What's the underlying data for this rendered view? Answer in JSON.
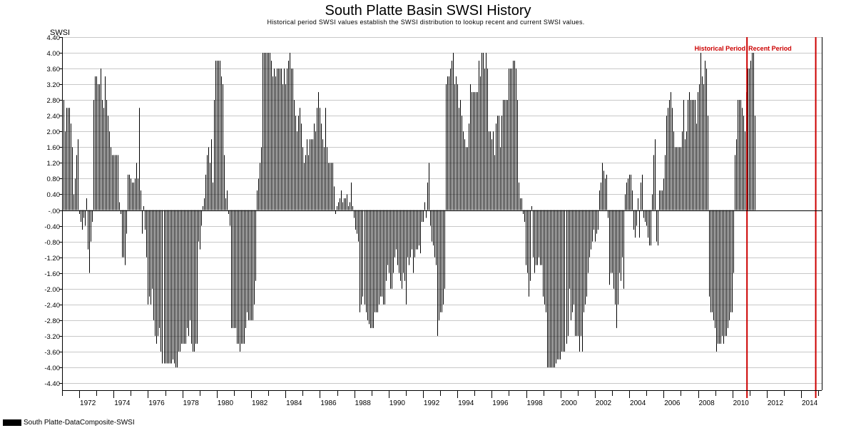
{
  "chart_data": {
    "type": "bar",
    "title": "South Platte Basin SWSI History",
    "subtitle": "Historical period SWSI values establish the SWSI distribution to lookup recent and current SWSI values.",
    "ylabel": "SWSI",
    "xlabel": "",
    "ylim": [
      -4.4,
      4.4
    ],
    "y_ticks": [
      "4.40",
      "4.00",
      "3.60",
      "3.20",
      "2.80",
      "2.40",
      "2.00",
      "1.60",
      "1.20",
      "0.80",
      "0.40",
      "-.00",
      "-0.40",
      "-0.80",
      "-1.20",
      "-1.60",
      "-2.00",
      "-2.40",
      "-2.80",
      "-3.20",
      "-3.60",
      "-4.00",
      "-4.40"
    ],
    "xlim": [
      1971.0,
      2015.2
    ],
    "x_ticks": [
      "1972",
      "1974",
      "1976",
      "1978",
      "1980",
      "1982",
      "1984",
      "1986",
      "1988",
      "1990",
      "1992",
      "1994",
      "1996",
      "1998",
      "2000",
      "2002",
      "2004",
      "2006",
      "2008",
      "2010",
      "2012",
      "2014"
    ],
    "grid": true,
    "series": [
      {
        "name": "South Platte-DataComposite-SWSI",
        "color": "#000000",
        "x_start": 1971.0,
        "x_step": 0.0833,
        "values": [
          2.8,
          2.8,
          2.0,
          2.6,
          2.6,
          2.6,
          2.2,
          1.6,
          0.4,
          0.8,
          1.4,
          1.8,
          -0.1,
          -0.3,
          -0.5,
          -0.2,
          -0.4,
          0.3,
          -1.0,
          -1.6,
          -0.8,
          -0.3,
          2.8,
          3.4,
          3.4,
          3.2,
          3.2,
          3.6,
          2.8,
          2.6,
          3.4,
          2.8,
          2.4,
          2.0,
          1.6,
          1.4,
          1.4,
          1.4,
          1.4,
          1.4,
          0.2,
          -0.1,
          -1.2,
          -1.2,
          -1.4,
          -0.6,
          0.9,
          0.9,
          0.8,
          0.7,
          0.7,
          0.8,
          1.2,
          0.8,
          2.6,
          0.5,
          -0.6,
          0.1,
          -0.5,
          -1.2,
          -2.4,
          -2.2,
          -2.4,
          -2.0,
          -2.8,
          -3.2,
          -3.4,
          -3.2,
          -3.0,
          -3.6,
          -3.9,
          -3.9,
          -3.9,
          -3.9,
          -3.9,
          -3.9,
          -3.9,
          -3.8,
          -3.9,
          -4.0,
          -4.0,
          -3.6,
          -3.6,
          -3.4,
          -3.4,
          -3.4,
          -3.4,
          -3.0,
          -3.2,
          -2.8,
          -3.4,
          -3.6,
          -3.6,
          -3.4,
          -3.4,
          -0.8,
          -1.0,
          -0.4,
          0.1,
          0.3,
          0.9,
          1.4,
          1.6,
          1.2,
          1.8,
          0.7,
          2.8,
          3.8,
          3.8,
          3.8,
          3.8,
          3.4,
          3.2,
          1.4,
          0.3,
          0.5,
          -0.1,
          -0.4,
          -3.0,
          -3.0,
          -3.0,
          -3.0,
          -3.4,
          -3.4,
          -3.6,
          -3.4,
          -3.4,
          -3.4,
          -3.0,
          -2.6,
          -2.8,
          -2.8,
          -2.8,
          -2.8,
          -2.4,
          -1.8,
          0.5,
          0.8,
          1.2,
          1.6,
          4.0,
          4.0,
          4.0,
          4.0,
          4.0,
          4.0,
          3.8,
          3.4,
          3.6,
          3.4,
          3.6,
          3.6,
          3.6,
          3.6,
          3.2,
          3.6,
          3.2,
          3.6,
          3.8,
          4.0,
          3.6,
          3.6,
          2.8,
          2.4,
          2.0,
          2.4,
          2.6,
          2.2,
          1.6,
          1.2,
          1.4,
          1.8,
          1.4,
          1.8,
          1.8,
          1.8,
          2.2,
          2.0,
          2.6,
          3.0,
          2.6,
          2.2,
          1.8,
          1.6,
          2.6,
          1.6,
          1.2,
          1.2,
          1.2,
          1.2,
          0.6,
          -0.1,
          0.1,
          0.2,
          0.3,
          0.5,
          0.2,
          0.3,
          0.3,
          0.4,
          0.1,
          0.2,
          0.7,
          0.1,
          -0.2,
          -0.5,
          -0.6,
          -0.8,
          -2.6,
          -2.4,
          -2.2,
          -2.4,
          -2.6,
          -2.8,
          -2.9,
          -3.0,
          -3.0,
          -3.0,
          -2.6,
          -2.6,
          -2.6,
          -2.4,
          -2.2,
          -2.2,
          -2.4,
          -2.4,
          -1.8,
          -1.4,
          -1.6,
          -2.0,
          -2.0,
          -1.6,
          -1.2,
          -1.0,
          -1.4,
          -1.6,
          -1.8,
          -2.0,
          -1.6,
          -1.8,
          -2.4,
          -1.2,
          -1.4,
          -1.2,
          -1.0,
          -1.6,
          -1.2,
          -1.0,
          -1.0,
          -0.9,
          -1.1,
          -0.3,
          -0.3,
          0.2,
          -0.2,
          0.7,
          1.2,
          -0.4,
          -0.8,
          -0.9,
          -1.2,
          -1.4,
          -3.2,
          -2.8,
          -2.6,
          -2.6,
          -2.4,
          -2.0,
          3.2,
          3.4,
          3.4,
          3.6,
          3.8,
          4.0,
          3.2,
          3.4,
          3.2,
          2.6,
          2.8,
          2.4,
          2.0,
          1.8,
          1.6,
          1.6,
          2.2,
          3.2,
          3.0,
          3.0,
          3.0,
          3.0,
          3.0,
          3.8,
          3.4,
          4.0,
          4.0,
          3.6,
          4.0,
          3.6,
          2.0,
          2.0,
          1.8,
          2.0,
          1.4,
          2.2,
          2.4,
          2.4,
          1.6,
          2.4,
          2.8,
          2.8,
          2.8,
          2.8,
          3.6,
          3.6,
          3.6,
          3.8,
          3.8,
          3.6,
          2.8,
          0.7,
          0.3,
          0.3,
          -0.1,
          -0.3,
          -1.4,
          -1.6,
          -2.2,
          -1.8,
          0.1,
          -1.2,
          -1.6,
          -1.4,
          -1.4,
          -1.2,
          -1.4,
          -1.4,
          -2.2,
          -2.4,
          -2.6,
          -4.0,
          -4.0,
          -4.0,
          -4.0,
          -4.0,
          -4.0,
          -3.9,
          -3.8,
          -3.8,
          -3.8,
          -3.6,
          -3.6,
          -3.6,
          -3.4,
          -3.2,
          -2.0,
          -2.8,
          -2.6,
          -2.4,
          -3.2,
          -3.2,
          -3.2,
          -3.6,
          -3.2,
          -3.6,
          -2.6,
          -2.4,
          -2.2,
          -1.6,
          -1.2,
          -1.0,
          -0.8,
          -0.5,
          -0.8,
          -0.6,
          -0.5,
          0.5,
          0.7,
          1.2,
          1.0,
          0.8,
          0.9,
          -0.2,
          -1.9,
          -1.6,
          -1.6,
          -2.0,
          -2.4,
          -3.0,
          -2.4,
          -1.6,
          -1.8,
          -1.2,
          -2.0,
          0.4,
          0.7,
          0.8,
          0.9,
          0.9,
          0.5,
          -0.5,
          -0.7,
          -0.4,
          0.3,
          -0.7,
          0.7,
          0.9,
          -0.2,
          -0.3,
          -0.4,
          -0.7,
          -0.9,
          -0.9,
          0.4,
          1.4,
          1.8,
          -0.8,
          -0.9,
          0.5,
          0.5,
          0.5,
          0.8,
          1.4,
          2.4,
          2.6,
          2.8,
          3.0,
          2.6,
          2.0,
          1.6,
          1.6,
          1.6,
          1.6,
          1.6,
          2.0,
          2.8,
          1.8,
          2.0,
          2.8,
          3.0,
          2.8,
          2.8,
          2.8,
          2.8,
          2.2,
          3.0,
          3.2,
          4.0,
          3.4,
          3.2,
          3.8,
          3.6,
          2.4,
          -2.2,
          -2.6,
          -2.6,
          -2.8,
          -3.0,
          -3.6,
          -3.4,
          -3.4,
          -3.4,
          -3.2,
          -3.4,
          -3.2,
          -3.2,
          -3.0,
          -2.8,
          -2.6,
          -2.6,
          -1.6,
          1.4,
          1.8,
          2.8,
          2.8,
          2.8,
          2.6,
          2.4,
          2.0,
          3.0,
          3.6,
          3.6,
          3.8,
          4.0,
          4.0,
          2.4
        ],
        "period_markers": []
      }
    ],
    "annotations": [
      {
        "text": "Historical Period",
        "x": 2010.85,
        "color": "#cc0000"
      },
      {
        "text": "Recent Period",
        "x": 2014.85,
        "color": "#cc0000"
      }
    ],
    "legend": {
      "placement": "bottom-left",
      "label": "South Platte-DataComposite-SWSI"
    }
  }
}
